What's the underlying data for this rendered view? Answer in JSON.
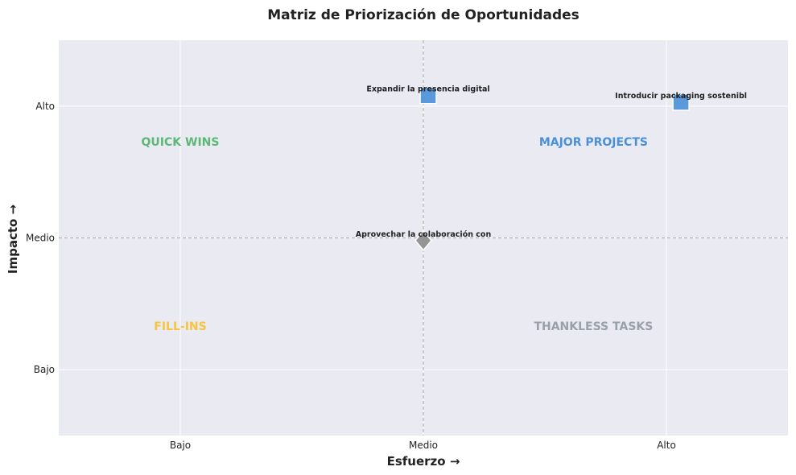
{
  "chart_data": {
    "type": "scatter",
    "title": "Matriz de Priorización de Oportunidades",
    "xlabel": "Esfuerzo →",
    "ylabel": "Impacto →",
    "x_ticks": [
      {
        "value": 1,
        "label": "Bajo"
      },
      {
        "value": 2,
        "label": "Medio"
      },
      {
        "value": 3,
        "label": "Alto"
      }
    ],
    "y_ticks": [
      {
        "value": 1,
        "label": "Bajo"
      },
      {
        "value": 2,
        "label": "Medio"
      },
      {
        "value": 3,
        "label": "Alto"
      }
    ],
    "xlim": [
      0.5,
      3.5
    ],
    "ylim": [
      0.5,
      3.5
    ],
    "divider_x": 2,
    "divider_y": 2,
    "grid": true,
    "quadrant_labels": [
      {
        "text": "QUICK WINS",
        "x": 1.0,
        "y": 2.73,
        "color": "#5cb874"
      },
      {
        "text": "MAJOR PROJECTS",
        "x": 2.7,
        "y": 2.73,
        "color": "#4a90d9"
      },
      {
        "text": "FILL-INS",
        "x": 1.0,
        "y": 1.33,
        "color": "#f5c542"
      },
      {
        "text": "THANKLESS TASKS",
        "x": 2.7,
        "y": 1.33,
        "color": "#9aa0aa"
      }
    ],
    "points": [
      {
        "label": "Expandir la presencia digital",
        "x": 2.02,
        "y": 3.08,
        "marker": "square",
        "color": "#4a90d9"
      },
      {
        "label": "Introducir packaging sostenibl",
        "x": 3.06,
        "y": 3.03,
        "marker": "square",
        "color": "#4a90d9"
      },
      {
        "label": "Aprovechar la colaboración con",
        "x": 2.0,
        "y": 1.98,
        "marker": "diamond",
        "color": "#8c8c8c"
      }
    ],
    "colors": {
      "plot_background": "#e9eaf2",
      "gridline": "#ffffff",
      "divider": "#b5b5b5"
    }
  }
}
